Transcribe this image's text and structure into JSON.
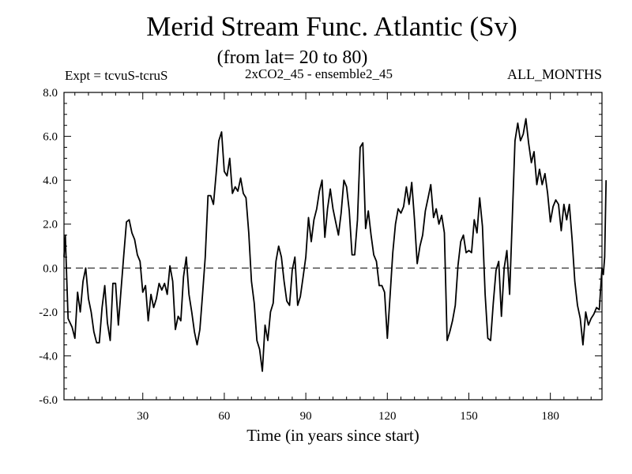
{
  "chart_data": {
    "type": "line",
    "title": "Merid Stream Func. Atlantic (Sv)",
    "subtitle": "(from lat= 20 to 80)",
    "expt_label": "Expt = tcvuS-tcruS",
    "ensemble_label": "2xCO2_45 - ensemble2_45",
    "months_label": "ALL_MONTHS",
    "xlabel": "Time (in years since start)",
    "ylabel": "",
    "xlim": [
      1,
      199
    ],
    "ylim": [
      -6.0,
      8.0
    ],
    "x_ticks": [
      30,
      60,
      90,
      120,
      150,
      180
    ],
    "y_ticks": [
      -6.0,
      -4.0,
      -2.0,
      0.0,
      2.0,
      4.0,
      6.0,
      8.0
    ],
    "y_tick_labels": [
      "-6.0",
      "-4.0",
      "-2.0",
      "0.0",
      "2.0",
      "4.0",
      "6.0",
      "8.0"
    ],
    "zero_line": {
      "y": 0.0,
      "style": "dashed"
    },
    "colors": {
      "line": "#000000",
      "axis": "#000000",
      "background": "#ffffff"
    },
    "series": [
      {
        "values": [
          [
            1,
            0.5
          ],
          [
            1.5,
            1.5
          ],
          [
            2,
            -0.4
          ],
          [
            2.5,
            -2.3
          ],
          [
            4,
            -2.7
          ],
          [
            5,
            -3.2
          ],
          [
            6,
            -1.1
          ],
          [
            7,
            -2.0
          ],
          [
            8,
            -0.6
          ],
          [
            9,
            0.0
          ],
          [
            10,
            -1.4
          ],
          [
            11,
            -2.0
          ],
          [
            12,
            -2.9
          ],
          [
            13,
            -3.4
          ],
          [
            14,
            -3.4
          ],
          [
            15,
            -1.8
          ],
          [
            16,
            -0.8
          ],
          [
            17,
            -2.5
          ],
          [
            18,
            -3.3
          ],
          [
            19,
            -0.7
          ],
          [
            20,
            -0.7
          ],
          [
            21,
            -2.6
          ],
          [
            22,
            -1.0
          ],
          [
            23,
            0.6
          ],
          [
            24,
            2.1
          ],
          [
            25,
            2.2
          ],
          [
            26,
            1.6
          ],
          [
            27,
            1.3
          ],
          [
            28,
            0.6
          ],
          [
            29,
            0.3
          ],
          [
            30,
            -1.1
          ],
          [
            31,
            -0.8
          ],
          [
            32,
            -2.4
          ],
          [
            33,
            -1.2
          ],
          [
            34,
            -1.8
          ],
          [
            35,
            -1.4
          ],
          [
            36,
            -0.7
          ],
          [
            37,
            -1.0
          ],
          [
            38,
            -0.7
          ],
          [
            39,
            -1.2
          ],
          [
            40,
            0.1
          ],
          [
            41,
            -0.6
          ],
          [
            42,
            -2.8
          ],
          [
            43,
            -2.2
          ],
          [
            44,
            -2.4
          ],
          [
            45,
            -0.4
          ],
          [
            46,
            0.5
          ],
          [
            47,
            -1.2
          ],
          [
            48,
            -2.0
          ],
          [
            49,
            -2.9
          ],
          [
            50,
            -3.5
          ],
          [
            51,
            -2.8
          ],
          [
            52,
            -1.2
          ],
          [
            53,
            0.5
          ],
          [
            54,
            3.3
          ],
          [
            55,
            3.3
          ],
          [
            56,
            2.9
          ],
          [
            57,
            4.3
          ],
          [
            58,
            5.8
          ],
          [
            59,
            6.2
          ],
          [
            60,
            4.4
          ],
          [
            61,
            4.2
          ],
          [
            62,
            5.0
          ],
          [
            63,
            3.4
          ],
          [
            64,
            3.7
          ],
          [
            65,
            3.5
          ],
          [
            66,
            4.1
          ],
          [
            67,
            3.4
          ],
          [
            68,
            3.2
          ],
          [
            69,
            1.6
          ],
          [
            70,
            -0.6
          ],
          [
            71,
            -1.6
          ],
          [
            72,
            -3.3
          ],
          [
            73,
            -3.7
          ],
          [
            74,
            -4.7
          ],
          [
            75,
            -2.6
          ],
          [
            76,
            -3.3
          ],
          [
            77,
            -2.0
          ],
          [
            78,
            -1.6
          ],
          [
            79,
            0.3
          ],
          [
            80,
            1.0
          ],
          [
            81,
            0.5
          ],
          [
            82,
            -0.6
          ],
          [
            83,
            -1.5
          ],
          [
            84,
            -1.7
          ],
          [
            85,
            -0.1
          ],
          [
            86,
            0.5
          ],
          [
            87,
            -1.7
          ],
          [
            88,
            -1.3
          ],
          [
            89,
            -0.4
          ],
          [
            90,
            0.5
          ],
          [
            91,
            2.3
          ],
          [
            92,
            1.2
          ],
          [
            93,
            2.2
          ],
          [
            94,
            2.7
          ],
          [
            95,
            3.5
          ],
          [
            96,
            4.0
          ],
          [
            97,
            1.4
          ],
          [
            98,
            2.7
          ],
          [
            99,
            3.6
          ],
          [
            100,
            2.7
          ],
          [
            101,
            2.1
          ],
          [
            102,
            1.5
          ],
          [
            103,
            2.5
          ],
          [
            104,
            4.0
          ],
          [
            105,
            3.7
          ],
          [
            106,
            2.6
          ],
          [
            107,
            0.6
          ],
          [
            108,
            0.6
          ],
          [
            109,
            2.2
          ],
          [
            110,
            5.5
          ],
          [
            111,
            5.7
          ],
          [
            112,
            1.8
          ],
          [
            113,
            2.6
          ],
          [
            114,
            1.5
          ],
          [
            115,
            0.6
          ],
          [
            116,
            0.3
          ],
          [
            117,
            -0.8
          ],
          [
            118,
            -0.8
          ],
          [
            119,
            -1.1
          ],
          [
            120,
            -3.2
          ],
          [
            121,
            -1.3
          ],
          [
            122,
            0.7
          ],
          [
            123,
            2.0
          ],
          [
            124,
            2.7
          ],
          [
            125,
            2.5
          ],
          [
            126,
            2.8
          ],
          [
            127,
            3.7
          ],
          [
            128,
            2.9
          ],
          [
            129,
            3.9
          ],
          [
            130,
            2.2
          ],
          [
            131,
            0.2
          ],
          [
            132,
            1.0
          ],
          [
            133,
            1.5
          ],
          [
            134,
            2.6
          ],
          [
            135,
            3.2
          ],
          [
            136,
            3.8
          ],
          [
            137,
            2.3
          ],
          [
            138,
            2.7
          ],
          [
            139,
            2.0
          ],
          [
            140,
            2.4
          ],
          [
            141,
            1.6
          ],
          [
            142,
            -3.3
          ],
          [
            143,
            -2.9
          ],
          [
            144,
            -2.4
          ],
          [
            145,
            -1.7
          ],
          [
            146,
            0.1
          ],
          [
            147,
            1.2
          ],
          [
            148,
            1.5
          ],
          [
            149,
            0.7
          ],
          [
            150,
            0.8
          ],
          [
            151,
            0.7
          ],
          [
            152,
            2.2
          ],
          [
            153,
            1.6
          ],
          [
            154,
            3.2
          ],
          [
            155,
            1.9
          ],
          [
            156,
            -1.2
          ],
          [
            157,
            -3.2
          ],
          [
            158,
            -3.3
          ],
          [
            159,
            -1.6
          ],
          [
            160,
            -0.1
          ],
          [
            161,
            0.3
          ],
          [
            162,
            -2.2
          ],
          [
            163,
            0.0
          ],
          [
            164,
            0.8
          ],
          [
            165,
            -1.2
          ],
          [
            166,
            2.3
          ],
          [
            167,
            5.8
          ],
          [
            168,
            6.6
          ],
          [
            169,
            5.8
          ],
          [
            170,
            6.1
          ],
          [
            171,
            6.8
          ],
          [
            172,
            5.7
          ],
          [
            173,
            4.8
          ],
          [
            174,
            5.3
          ],
          [
            175,
            3.8
          ],
          [
            176,
            4.5
          ],
          [
            177,
            3.8
          ],
          [
            178,
            4.3
          ],
          [
            179,
            3.4
          ],
          [
            180,
            2.1
          ],
          [
            181,
            2.8
          ],
          [
            182,
            3.1
          ],
          [
            183,
            2.9
          ],
          [
            184,
            1.7
          ],
          [
            185,
            2.9
          ],
          [
            186,
            2.2
          ],
          [
            187,
            2.9
          ],
          [
            188,
            1.3
          ],
          [
            189,
            -0.6
          ],
          [
            190,
            -1.7
          ],
          [
            191,
            -2.3
          ],
          [
            192,
            -3.5
          ],
          [
            193,
            -2.0
          ],
          [
            194,
            -2.6
          ],
          [
            195,
            -2.3
          ],
          [
            196,
            -2.1
          ],
          [
            197,
            -1.8
          ],
          [
            198,
            -1.9
          ],
          [
            199,
            0.0
          ],
          [
            199.5,
            -0.3
          ],
          [
            200,
            0.5
          ],
          [
            200.5,
            4.0
          ]
        ]
      }
    ]
  }
}
